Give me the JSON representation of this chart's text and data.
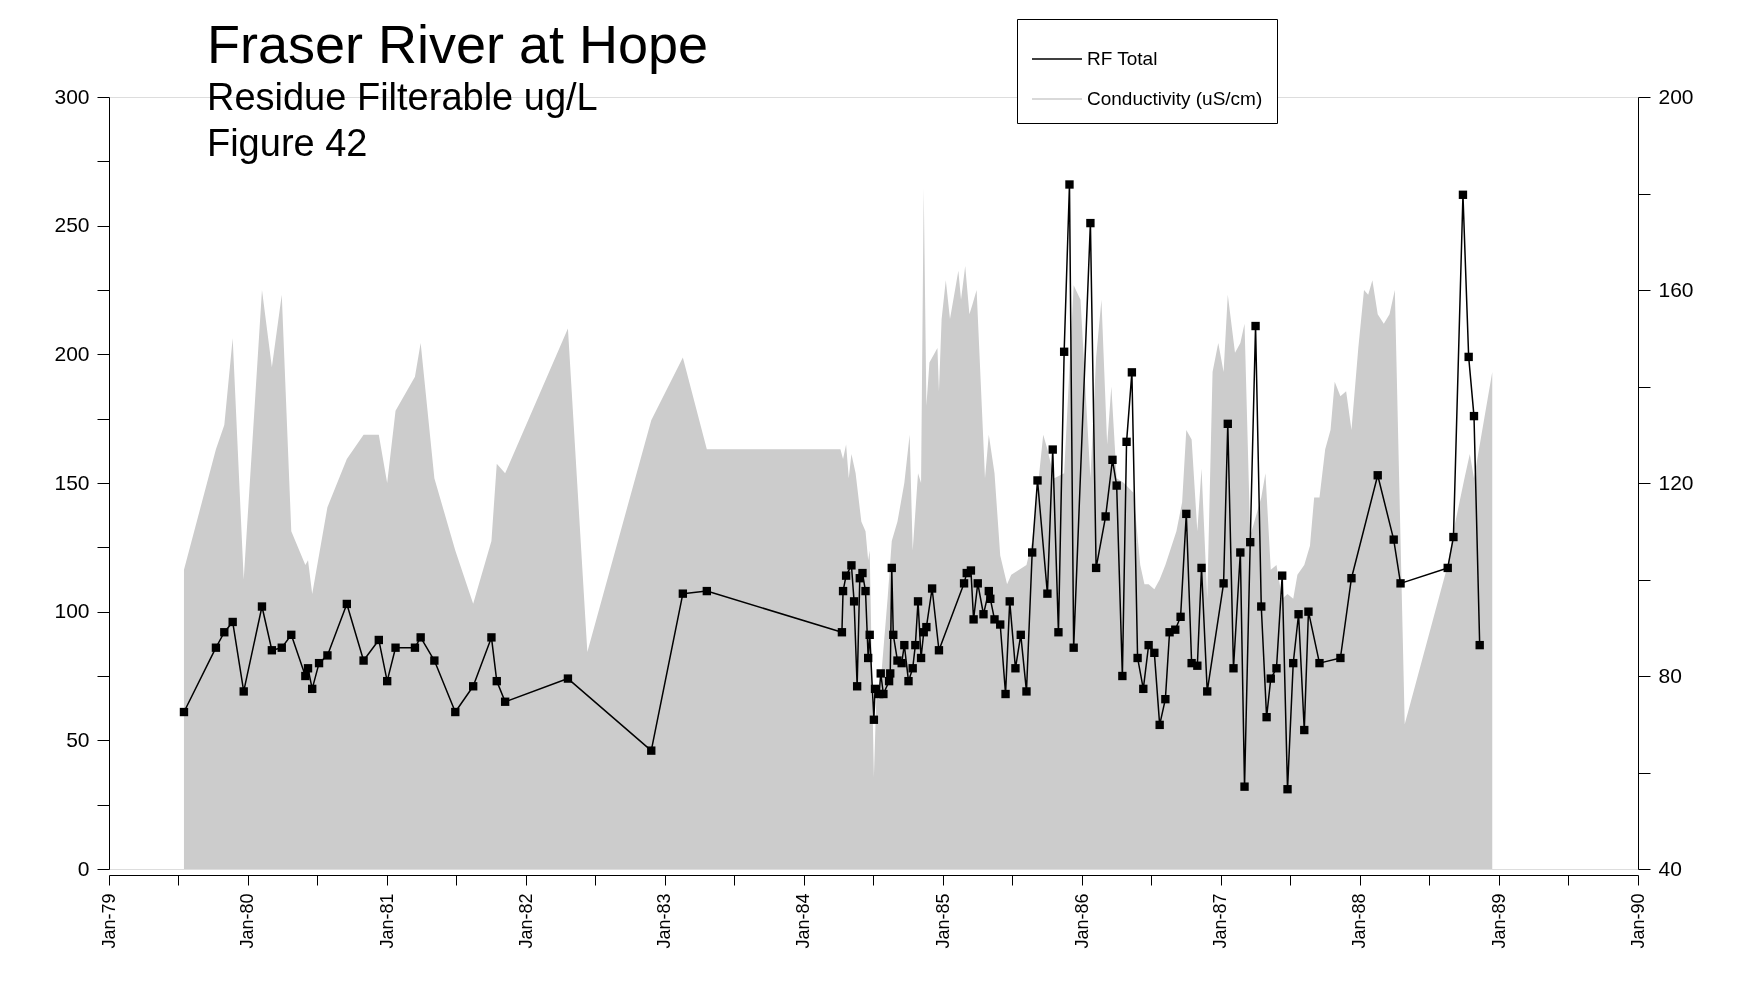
{
  "chart_data": {
    "type": "line",
    "title": "Fraser River at Hope",
    "subtitle": "Residue Filterable ug/L\nFigure 42",
    "xlim": [
      "1979-01-01",
      "1990-01-01"
    ],
    "xticks": [
      {
        "value": "1979-01-01",
        "label": "Jan-79"
      },
      {
        "value": "1979-07-01",
        "label": null
      },
      {
        "value": "1980-01-01",
        "label": "Jan-80"
      },
      {
        "value": "1980-07-01",
        "label": null
      },
      {
        "value": "1981-01-01",
        "label": "Jan-81"
      },
      {
        "value": "1981-07-01",
        "label": null
      },
      {
        "value": "1982-01-01",
        "label": "Jan-82"
      },
      {
        "value": "1982-07-01",
        "label": null
      },
      {
        "value": "1983-01-01",
        "label": "Jan-83"
      },
      {
        "value": "1983-07-01",
        "label": null
      },
      {
        "value": "1984-01-01",
        "label": "Jan-84"
      },
      {
        "value": "1984-07-01",
        "label": null
      },
      {
        "value": "1985-01-01",
        "label": "Jan-85"
      },
      {
        "value": "1985-07-01",
        "label": null
      },
      {
        "value": "1986-01-01",
        "label": "Jan-86"
      },
      {
        "value": "1986-07-01",
        "label": null
      },
      {
        "value": "1987-01-01",
        "label": "Jan-87"
      },
      {
        "value": "1987-07-01",
        "label": null
      },
      {
        "value": "1988-01-01",
        "label": "Jan-88"
      },
      {
        "value": "1988-07-01",
        "label": null
      },
      {
        "value": "1989-01-01",
        "label": "Jan-89"
      },
      {
        "value": "1989-07-01",
        "label": null
      },
      {
        "value": "1990-01-01",
        "label": "Jan-90"
      }
    ],
    "ylim": [
      0,
      300
    ],
    "yticks": [
      0,
      {
        "value": 25,
        "label": null
      },
      50,
      {
        "value": 75,
        "label": null
      },
      100,
      {
        "value": 125,
        "label": null
      },
      150,
      {
        "value": 175,
        "label": null
      },
      200,
      {
        "value": 225,
        "label": null
      },
      250,
      {
        "value": 275,
        "label": null
      },
      300
    ],
    "y2lim": [
      40,
      200
    ],
    "y2ticks": [
      40,
      {
        "value": 60,
        "label": null
      },
      80,
      {
        "value": 100,
        "label": null
      },
      120,
      {
        "value": 140,
        "label": null
      },
      160,
      {
        "value": 180,
        "label": null
      },
      200
    ],
    "legend": "top right",
    "series": [
      {
        "name": "RF Total",
        "marker": "square",
        "color": "#000000",
        "x": [
          "1979-07-17",
          "1979-10-09",
          "1979-10-31",
          "1979-11-22",
          "1979-12-21",
          "1980-02-07",
          "1980-03-04",
          "1980-03-30",
          "1980-04-24",
          "1980-05-31",
          "1980-06-07",
          "1980-06-18",
          "1980-07-06",
          "1980-07-28",
          "1980-09-17",
          "1980-10-31",
          "1980-12-10",
          "1981-01-01",
          "1981-01-23",
          "1981-03-15",
          "1981-03-30",
          "1981-05-05",
          "1981-06-29",
          "1981-08-15",
          "1981-10-02",
          "1981-10-16",
          "1981-11-07",
          "1982-04-21",
          "1982-11-26",
          "1983-02-17",
          "1983-04-21",
          "1984-04-10",
          "1984-04-13",
          "1984-04-21",
          "1984-05-05",
          "1984-05-12",
          "1984-05-20",
          "1984-05-27",
          "1984-06-03",
          "1984-06-11",
          "1984-06-18",
          "1984-06-22",
          "1984-07-03",
          "1984-07-06",
          "1984-07-17",
          "1984-07-21",
          "1984-07-28",
          "1984-08-12",
          "1984-08-15",
          "1984-08-19",
          "1984-08-23",
          "1984-09-03",
          "1984-09-14",
          "1984-09-21",
          "1984-10-02",
          "1984-10-13",
          "1984-10-20",
          "1984-10-27",
          "1984-11-04",
          "1984-11-11",
          "1984-11-18",
          "1984-12-03",
          "1984-12-21",
          "1985-02-25",
          "1985-03-04",
          "1985-03-15",
          "1985-03-22",
          "1985-04-02",
          "1985-04-17",
          "1985-05-01",
          "1985-05-05",
          "1985-05-16",
          "1985-05-31",
          "1985-06-14",
          "1985-06-25",
          "1985-07-10",
          "1985-07-24",
          "1985-08-08",
          "1985-08-23",
          "1985-09-06",
          "1985-10-02",
          "1985-10-16",
          "1985-10-31",
          "1985-11-15",
          "1985-11-29",
          "1985-12-10",
          "1986-01-23",
          "1986-02-07",
          "1986-03-04",
          "1986-03-22",
          "1986-04-02",
          "1986-04-17",
          "1986-04-28",
          "1986-05-12",
          "1986-05-27",
          "1986-06-11",
          "1986-06-25",
          "1986-07-10",
          "1986-07-24",
          "1986-08-08",
          "1986-08-19",
          "1986-09-03",
          "1986-09-17",
          "1986-10-02",
          "1986-10-16",
          "1986-10-31",
          "1986-11-11",
          "1986-11-26",
          "1987-01-08",
          "1987-01-19",
          "1987-02-03",
          "1987-02-21",
          "1987-03-04",
          "1987-03-19",
          "1987-04-02",
          "1987-04-17",
          "1987-05-01",
          "1987-05-12",
          "1987-05-27",
          "1987-06-11",
          "1987-06-25",
          "1987-07-10",
          "1987-07-24",
          "1987-08-08",
          "1987-08-19",
          "1987-09-17",
          "1987-11-11",
          "1987-12-10",
          "1988-02-17",
          "1988-03-30",
          "1988-04-17",
          "1988-08-19",
          "1988-09-03",
          "1988-09-28",
          "1988-10-13",
          "1988-10-27",
          "1988-11-11"
        ],
        "values": [
          61,
          86,
          92,
          96,
          69,
          102,
          85,
          86,
          91,
          75,
          78,
          70,
          80,
          83,
          103,
          81,
          89,
          73,
          86,
          86,
          90,
          81,
          61,
          71,
          90,
          73,
          65,
          74,
          46,
          107,
          108,
          92,
          108,
          114,
          118,
          104,
          71,
          113,
          115,
          108,
          82,
          91,
          58,
          70,
          68,
          76,
          68,
          73,
          76,
          117,
          91,
          81,
          80,
          87,
          73,
          78,
          87,
          104,
          82,
          92,
          94,
          109,
          85,
          111,
          115,
          116,
          97,
          111,
          99,
          108,
          105,
          97,
          95,
          68,
          104,
          78,
          91,
          69,
          123,
          151,
          107,
          163,
          92,
          201,
          266,
          86,
          251,
          117,
          137,
          159,
          149,
          75,
          166,
          193,
          82,
          70,
          87,
          84,
          56,
          66,
          92,
          93,
          98,
          138,
          80,
          79,
          117,
          69,
          111,
          173,
          78,
          123,
          32,
          127,
          211,
          102,
          59,
          74,
          78,
          114,
          31,
          80,
          99,
          54,
          100,
          80,
          82,
          113,
          153,
          128,
          111,
          117,
          129,
          262,
          199,
          176,
          87
        ]
      },
      {
        "name": "Conductivity (uS/cm)",
        "type": "area",
        "axis": "y2",
        "color": "#cccccc",
        "x": [
          "1979-07-17",
          "1979-10-09",
          "1979-10-31",
          "1979-11-22",
          "1979-12-21",
          "1980-02-07",
          "1980-03-04",
          "1980-03-30",
          "1980-04-24",
          "1980-05-31",
          "1980-06-07",
          "1980-06-18",
          "1980-07-28",
          "1980-09-17",
          "1980-10-31",
          "1980-12-10",
          "1981-01-01",
          "1981-01-23",
          "1981-03-15",
          "1981-03-30",
          "1981-05-05",
          "1981-06-29",
          "1981-08-15",
          "1981-10-02",
          "1981-10-16",
          "1981-11-07",
          "1982-04-21",
          "1982-06-11",
          "1982-11-26",
          "1983-02-17",
          "1983-04-21",
          "1984-04-06",
          "1984-04-13",
          "1984-04-21",
          "1984-04-28",
          "1984-05-05",
          "1984-05-16",
          "1984-05-31",
          "1984-06-11",
          "1984-06-18",
          "1984-06-22",
          "1984-07-03",
          "1984-07-10",
          "1984-07-17",
          "1984-08-08",
          "1984-08-19",
          "1984-09-03",
          "1984-09-21",
          "1984-10-05",
          "1984-10-13",
          "1984-10-27",
          "1984-11-04",
          "1984-11-11",
          "1984-11-18",
          "1984-11-26",
          "1984-12-17",
          "1984-12-21",
          "1984-12-28",
          "1985-01-08",
          "1985-01-19",
          "1985-02-10",
          "1985-02-17",
          "1985-02-28",
          "1985-03-11",
          "1985-03-19",
          "1985-03-30",
          "1985-04-21",
          "1985-05-01",
          "1985-05-16",
          "1985-05-31",
          "1985-06-18",
          "1985-06-29",
          "1985-08-08",
          "1985-08-23",
          "1985-09-21",
          "1985-10-02",
          "1985-10-20",
          "1985-11-15",
          "1985-12-10",
          "1985-12-28",
          "1986-01-23",
          "1986-02-07",
          "1986-02-21",
          "1986-03-08",
          "1986-03-19",
          "1986-04-02",
          "1986-04-21",
          "1986-05-16",
          "1986-06-03",
          "1986-06-14",
          "1986-06-25",
          "1986-07-10",
          "1986-07-24",
          "1986-08-08",
          "1986-09-06",
          "1986-09-21",
          "1986-10-02",
          "1986-10-16",
          "1986-10-31",
          "1986-11-11",
          "1986-11-26",
          "1986-12-10",
          "1986-12-25",
          "1987-01-08",
          "1987-01-19",
          "1987-02-07",
          "1987-02-21",
          "1987-03-04",
          "1987-03-19",
          "1987-04-17",
          "1987-04-28",
          "1987-05-12",
          "1987-05-27",
          "1987-06-11",
          "1987-06-25",
          "1987-07-10",
          "1987-07-21",
          "1987-08-08",
          "1987-08-23",
          "1987-09-03",
          "1987-09-17",
          "1987-10-02",
          "1987-10-16",
          "1987-10-27",
          "1987-11-11",
          "1987-11-26",
          "1987-12-10",
          "1987-12-28",
          "1988-01-12",
          "1988-01-23",
          "1988-02-03",
          "1988-02-17",
          "1988-03-04",
          "1988-03-19",
          "1988-04-02",
          "1988-04-28",
          "1988-08-19",
          "1988-09-03",
          "1988-10-02",
          "1988-10-16",
          "1988-10-27",
          "1988-12-14"
        ],
        "values": [
          102,
          127,
          132,
          150,
          100,
          160,
          144,
          159,
          110,
          103,
          104,
          97,
          115,
          125,
          130,
          130,
          120,
          135,
          142,
          149,
          121,
          106,
          95,
          108,
          124,
          122,
          152,
          85,
          133,
          146,
          127,
          127,
          125,
          128,
          121,
          126,
          122,
          112,
          110,
          104,
          106,
          59,
          77,
          75,
          96,
          108,
          112,
          120,
          130,
          106,
          122,
          120,
          181,
          136,
          145,
          148,
          139,
          154,
          162,
          154,
          164,
          158,
          165,
          155,
          157,
          160,
          121,
          130,
          122,
          105,
          99,
          101,
          103,
          108,
          130,
          127,
          121,
          122,
          161,
          158,
          121,
          146,
          158,
          128,
          140,
          121,
          120,
          118,
          103,
          99,
          99,
          98,
          100,
          103,
          110,
          116,
          131,
          129,
          110,
          123,
          96,
          143,
          149,
          143,
          159,
          147,
          149,
          153,
          109,
          117,
          122,
          102,
          103,
          96,
          97,
          96,
          101,
          103,
          107,
          117,
          117,
          127,
          131,
          141,
          138,
          139,
          131,
          148,
          160,
          159,
          162,
          155,
          153,
          155,
          160,
          70,
          103,
          110,
          121,
          126,
          121,
          143
        ]
      }
    ]
  }
}
